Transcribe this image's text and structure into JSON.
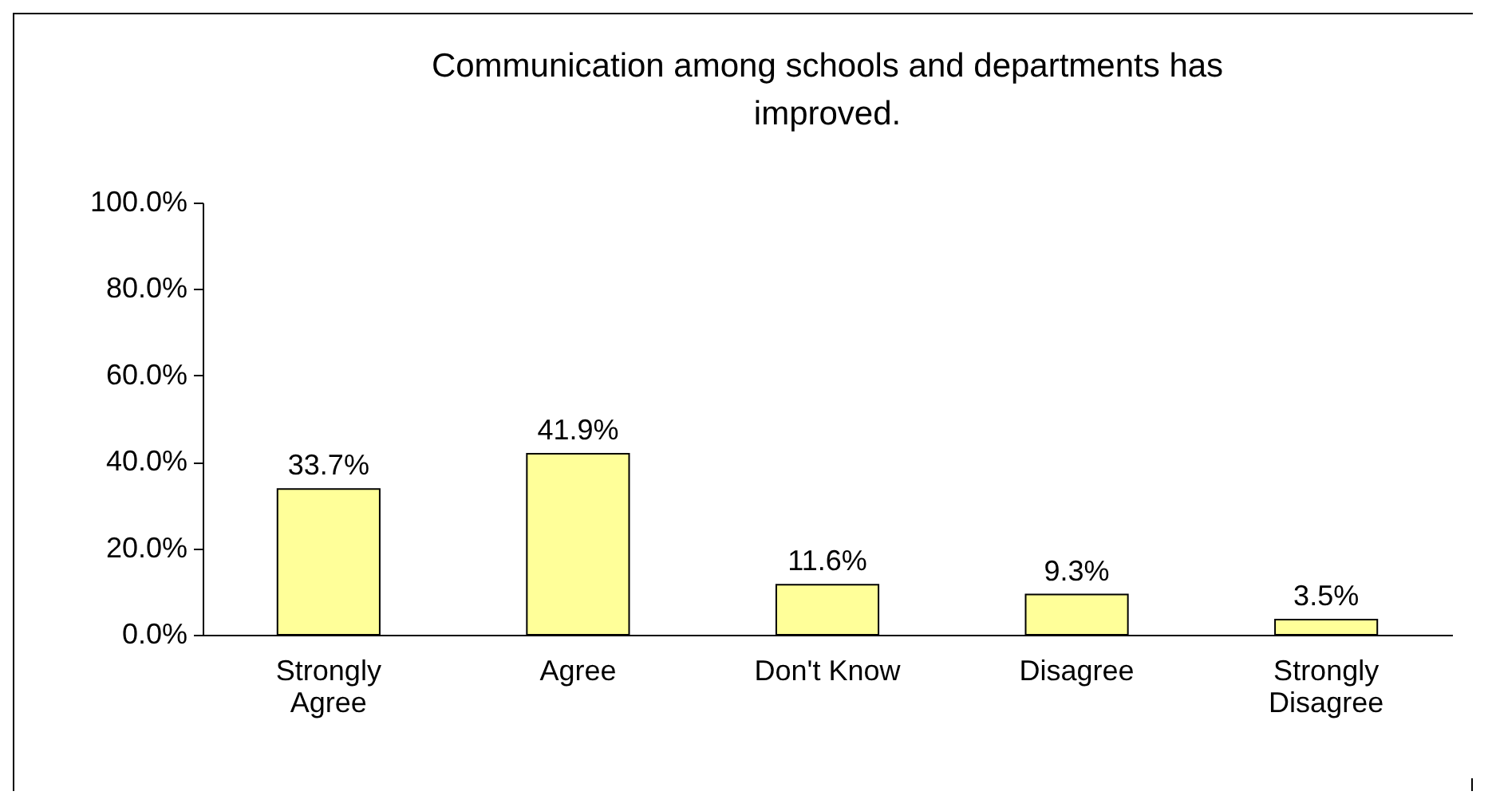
{
  "chart_data": {
    "type": "bar",
    "title": "Communication among schools and departments has improved.",
    "categories": [
      "Strongly Agree",
      "Agree",
      "Don't Know",
      "Disagree",
      "Strongly Disagree"
    ],
    "values": [
      33.7,
      41.9,
      11.6,
      9.3,
      3.5
    ],
    "value_labels": [
      "33.7%",
      "41.9%",
      "11.6%",
      "9.3%",
      "3.5%"
    ],
    "color": "#ffff99",
    "ylim": [
      0,
      100
    ],
    "yticks": [
      {
        "value": 0,
        "label": "0.0%"
      },
      {
        "value": 20,
        "label": "20.0%"
      },
      {
        "value": 40,
        "label": "40.0%"
      },
      {
        "value": 60,
        "label": "60.0%"
      },
      {
        "value": 80,
        "label": "80.0%"
      },
      {
        "value": 100,
        "label": "100.0%"
      }
    ],
    "grid": false
  }
}
